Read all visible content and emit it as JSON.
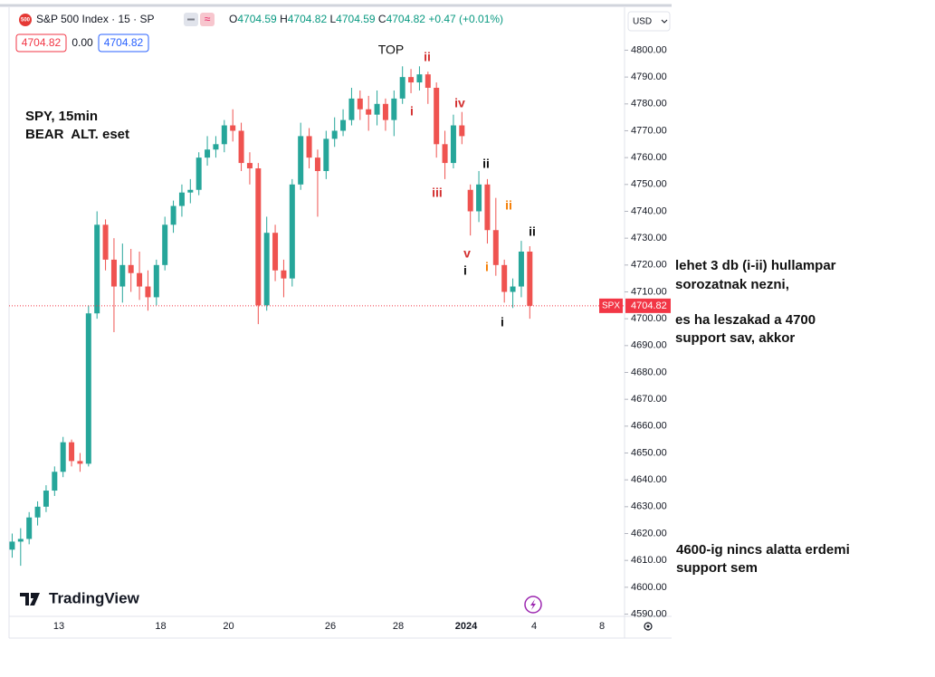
{
  "chart_data": {
    "type": "candlestick",
    "categories": [
      null,
      null,
      null,
      null,
      null,
      null,
      "13",
      null,
      null,
      null,
      null,
      null,
      null,
      null,
      null,
      null,
      null,
      null,
      "18",
      null,
      null,
      null,
      null,
      null,
      null,
      null,
      "20",
      null,
      null,
      null,
      null,
      null,
      null,
      null,
      null,
      null,
      null,
      null,
      "26",
      null,
      null,
      null,
      null,
      null,
      null,
      null,
      "28",
      null,
      null,
      null,
      null,
      null,
      null,
      null,
      "2024",
      null,
      null,
      null,
      null,
      null,
      null,
      null,
      "4",
      null,
      null,
      null,
      null,
      null,
      null,
      null,
      "8",
      null,
      null
    ],
    "open": [
      4614,
      4617,
      4618,
      4626,
      4630,
      4636,
      4643,
      4654,
      4647,
      4646,
      4702,
      4735,
      4722,
      4712,
      4720,
      4717,
      4712,
      4708,
      4720,
      4735,
      4742,
      4747,
      4748,
      4760,
      4763,
      4765,
      4772,
      4770,
      4758,
      4756,
      4705,
      4732,
      4718,
      4715,
      4750,
      4768,
      4760,
      4755,
      4767,
      4770,
      4774,
      4782,
      4778,
      4776,
      4780,
      4774,
      4782,
      4790,
      4788,
      4791,
      4786,
      4765,
      4758,
      4772,
      4748,
      4740,
      4750,
      4733,
      4720,
      4710,
      4712,
      4725,
      null,
      null,
      null,
      null,
      null,
      null,
      null,
      null,
      null,
      null,
      null
    ],
    "high": [
      4620,
      4622,
      4628,
      4632,
      4638,
      4645,
      4656,
      4655,
      4650,
      4705,
      4740,
      4737,
      4730,
      4728,
      4726,
      4725,
      4718,
      4722,
      4738,
      4744,
      4750,
      4752,
      4762,
      4768,
      4768,
      4774,
      4778,
      4773,
      4762,
      4758,
      4738,
      4735,
      4722,
      4752,
      4773,
      4771,
      4763,
      4770,
      4775,
      4778,
      4786,
      4785,
      4783,
      4785,
      4782,
      4785,
      4794,
      4793,
      4794,
      4792,
      4788,
      4770,
      4776,
      4777,
      4750,
      4755,
      4752,
      4745,
      4722,
      4715,
      4729,
      4727,
      null,
      null,
      null,
      null,
      null,
      null,
      null,
      null,
      null,
      null,
      null
    ],
    "low": [
      4611,
      4608,
      4616,
      4623,
      4628,
      4634,
      4641,
      4645,
      4643,
      4645,
      4700,
      4718,
      4695,
      4706,
      4710,
      4707,
      4703,
      4705,
      4718,
      4732,
      4738,
      4743,
      4746,
      4757,
      4760,
      4762,
      4766,
      4755,
      4750,
      4698,
      4703,
      4714,
      4708,
      4712,
      4748,
      4756,
      4738,
      4752,
      4764,
      4768,
      4772,
      4774,
      4770,
      4772,
      4770,
      4768,
      4780,
      4784,
      4785,
      4780,
      4760,
      4752,
      4756,
      4765,
      4731,
      4736,
      4728,
      4716,
      4706,
      4704,
      4708,
      4700,
      null,
      null,
      null,
      null,
      null,
      null,
      null,
      null,
      null,
      null,
      null
    ],
    "close": [
      4617,
      4618,
      4626,
      4630,
      4636,
      4643,
      4654,
      4647,
      4646,
      4702,
      4735,
      4722,
      4712,
      4720,
      4717,
      4712,
      4708,
      4720,
      4735,
      4742,
      4747,
      4748,
      4760,
      4763,
      4765,
      4772,
      4770,
      4758,
      4756,
      4705,
      4732,
      4718,
      4715,
      4750,
      4768,
      4760,
      4755,
      4767,
      4770,
      4774,
      4782,
      4778,
      4776,
      4780,
      4774,
      4782,
      4790,
      4788,
      4791,
      4786,
      4765,
      4758,
      4772,
      4768,
      4740,
      4750,
      4733,
      4720,
      4710,
      4712,
      4725,
      4704.82,
      null,
      null,
      null,
      null,
      null,
      null,
      null,
      null,
      null,
      null,
      null
    ],
    "up_color": "#26a69a",
    "down_color": "#ef5350",
    "ylim": [
      4589.5,
      4816
    ],
    "yticks": [
      {
        "value": 4590,
        "label": "4590.00"
      },
      {
        "value": 4600,
        "label": "4600.00"
      },
      {
        "value": 4610,
        "label": "4610.00"
      },
      {
        "value": 4620,
        "label": "4620.00"
      },
      {
        "value": 4630,
        "label": "4630.00"
      },
      {
        "value": 4640,
        "label": "4640.00"
      },
      {
        "value": 4650,
        "label": "4650.00"
      },
      {
        "value": 4660,
        "label": "4660.00"
      },
      {
        "value": 4670,
        "label": "4670.00"
      },
      {
        "value": 4680,
        "label": "4680.00"
      },
      {
        "value": 4690,
        "label": "4690.00"
      },
      {
        "value": 4700,
        "label": "4700.00"
      },
      {
        "value": 4710,
        "label": "4710.00"
      },
      {
        "value": 4720,
        "label": "4720.00"
      },
      {
        "value": 4730,
        "label": "4730.00"
      },
      {
        "value": 4740,
        "label": "4740.00"
      },
      {
        "value": 4750,
        "label": "4750.00"
      },
      {
        "value": 4760,
        "label": "4760.00"
      },
      {
        "value": 4770,
        "label": "4770.00"
      },
      {
        "value": 4780,
        "label": "4780.00"
      },
      {
        "value": 4790,
        "label": "4790.00"
      },
      {
        "value": 4800,
        "label": "4800.00"
      }
    ],
    "grid": false,
    "price_line": {
      "label": "SPX",
      "value": 4704.82,
      "color": "#f23645"
    }
  },
  "header": {
    "icon": "500",
    "title": "S&P 500 Index · 15 · SP",
    "ohlc": [
      {
        "key": "O",
        "value": "4704.59"
      },
      {
        "key": "H",
        "value": "4704.82"
      },
      {
        "key": "L",
        "value": "4704.59"
      },
      {
        "key": "C",
        "value": "4704.82"
      }
    ],
    "change": "+0.47 (+0.01%)",
    "bid": "4704.82",
    "spread": "0.00",
    "ask": "4704.82",
    "currency": "USD"
  },
  "annotations": {
    "heading": [
      "SPY, 15min",
      "BEAR  ALT. eset"
    ],
    "top": "TOP",
    "waves": [
      "ii",
      "i",
      "iv",
      "iii",
      "v",
      "i",
      "ii",
      "ii",
      "i",
      "i",
      "ii"
    ],
    "notes": [
      "lehet 3 db (i-ii) hullampar",
      "sorozatnak nezni,",
      "es ha leszakad a 4700",
      "support sav, akkor",
      "4600-ig nincs alatta erdemi",
      "support sem"
    ]
  },
  "branding": "TradingView"
}
